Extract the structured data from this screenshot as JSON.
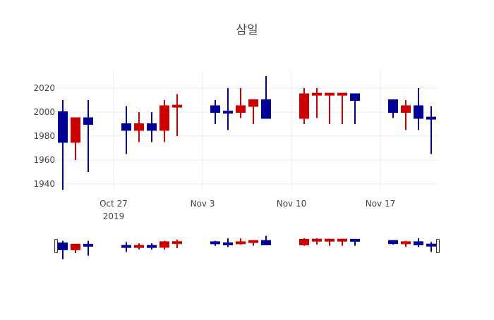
{
  "chart_data": {
    "type": "candlestick",
    "title": "삼일",
    "xlabel": "",
    "ylabel": "",
    "ylim": [
      1934.7,
      2034.7
    ],
    "xlim": [
      "2019-10-22T12:00",
      "2019-11-21T12:00"
    ],
    "grid": true,
    "legend": "none",
    "rangeslider": true,
    "colors": {
      "increasing": "#cc0000",
      "decreasing": "#000099"
    },
    "y_ticks": [
      1940,
      1960,
      1980,
      2000,
      2020
    ],
    "x_ticks": [
      {
        "date": "2019-10-27",
        "label": "Oct 27",
        "sublabel": "2019"
      },
      {
        "date": "2019-11-03",
        "label": "Nov 3",
        "sublabel": ""
      },
      {
        "date": "2019-11-10",
        "label": "Nov 10",
        "sublabel": ""
      },
      {
        "date": "2019-11-17",
        "label": "Nov 17",
        "sublabel": ""
      }
    ],
    "series": [
      {
        "date": "2019-10-23",
        "open": 2000,
        "high": 2010,
        "low": 1935,
        "close": 1975
      },
      {
        "date": "2019-10-24",
        "open": 1975,
        "high": 1995,
        "low": 1960,
        "close": 1995
      },
      {
        "date": "2019-10-25",
        "open": 1995,
        "high": 2010,
        "low": 1950,
        "close": 1990
      },
      {
        "date": "2019-10-28",
        "open": 1990,
        "high": 2005,
        "low": 1965,
        "close": 1985
      },
      {
        "date": "2019-10-29",
        "open": 1985,
        "high": 2000,
        "low": 1975,
        "close": 1990
      },
      {
        "date": "2019-10-30",
        "open": 1990,
        "high": 2000,
        "low": 1975,
        "close": 1985
      },
      {
        "date": "2019-10-31",
        "open": 1985,
        "high": 2010,
        "low": 1975,
        "close": 2005
      },
      {
        "date": "2019-11-01",
        "open": 2005,
        "high": 2015,
        "low": 1980,
        "close": 2005.5
      },
      {
        "date": "2019-11-04",
        "open": 2005,
        "high": 2010,
        "low": 1990,
        "close": 2000
      },
      {
        "date": "2019-11-05",
        "open": 2000.5,
        "high": 2020,
        "low": 1985,
        "close": 2000
      },
      {
        "date": "2019-11-06",
        "open": 2000,
        "high": 2020,
        "low": 1995,
        "close": 2005
      },
      {
        "date": "2019-11-07",
        "open": 2005,
        "high": 2010,
        "low": 1990,
        "close": 2010
      },
      {
        "date": "2019-11-08",
        "open": 2010,
        "high": 2030,
        "low": 1995,
        "close": 1995
      },
      {
        "date": "2019-11-11",
        "open": 1995,
        "high": 2020,
        "low": 1990,
        "close": 2015
      },
      {
        "date": "2019-11-12",
        "open": 2015,
        "high": 2020,
        "low": 1995,
        "close": 2015.5
      },
      {
        "date": "2019-11-13",
        "open": 2015,
        "high": 2015,
        "low": 1990,
        "close": 2015.5
      },
      {
        "date": "2019-11-14",
        "open": 2015,
        "high": 2015,
        "low": 1990,
        "close": 2015.5
      },
      {
        "date": "2019-11-15",
        "open": 2015,
        "high": 2015,
        "low": 1990,
        "close": 2010
      },
      {
        "date": "2019-11-18",
        "open": 2010,
        "high": 2010,
        "low": 1995,
        "close": 2000
      },
      {
        "date": "2019-11-19",
        "open": 2000,
        "high": 2010,
        "low": 1985,
        "close": 2005
      },
      {
        "date": "2019-11-20",
        "open": 2005,
        "high": 2020,
        "low": 1985,
        "close": 1995
      },
      {
        "date": "2019-11-21",
        "open": 1995.5,
        "high": 2005,
        "low": 1965,
        "close": 1995
      }
    ]
  }
}
